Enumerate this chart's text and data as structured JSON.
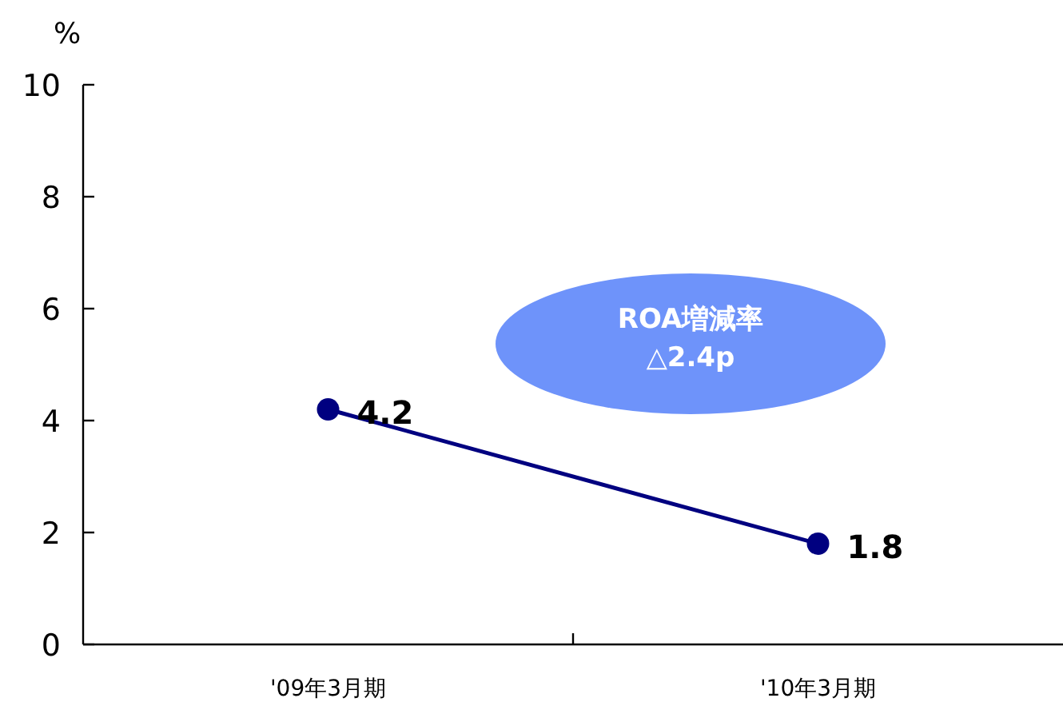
{
  "chart_data": {
    "type": "line",
    "ylabel": "%",
    "categories": [
      "'09年3月期",
      "'10年3月期"
    ],
    "series": [
      {
        "color": "#000080",
        "values": [
          4.2,
          1.8
        ]
      }
    ],
    "ylim": [
      0,
      10
    ],
    "yticks": [
      0,
      2,
      4,
      6,
      8,
      10
    ],
    "marker": "circle",
    "data_labels": true,
    "annotations": [
      "ROA増減率 △2.4p"
    ]
  }
}
